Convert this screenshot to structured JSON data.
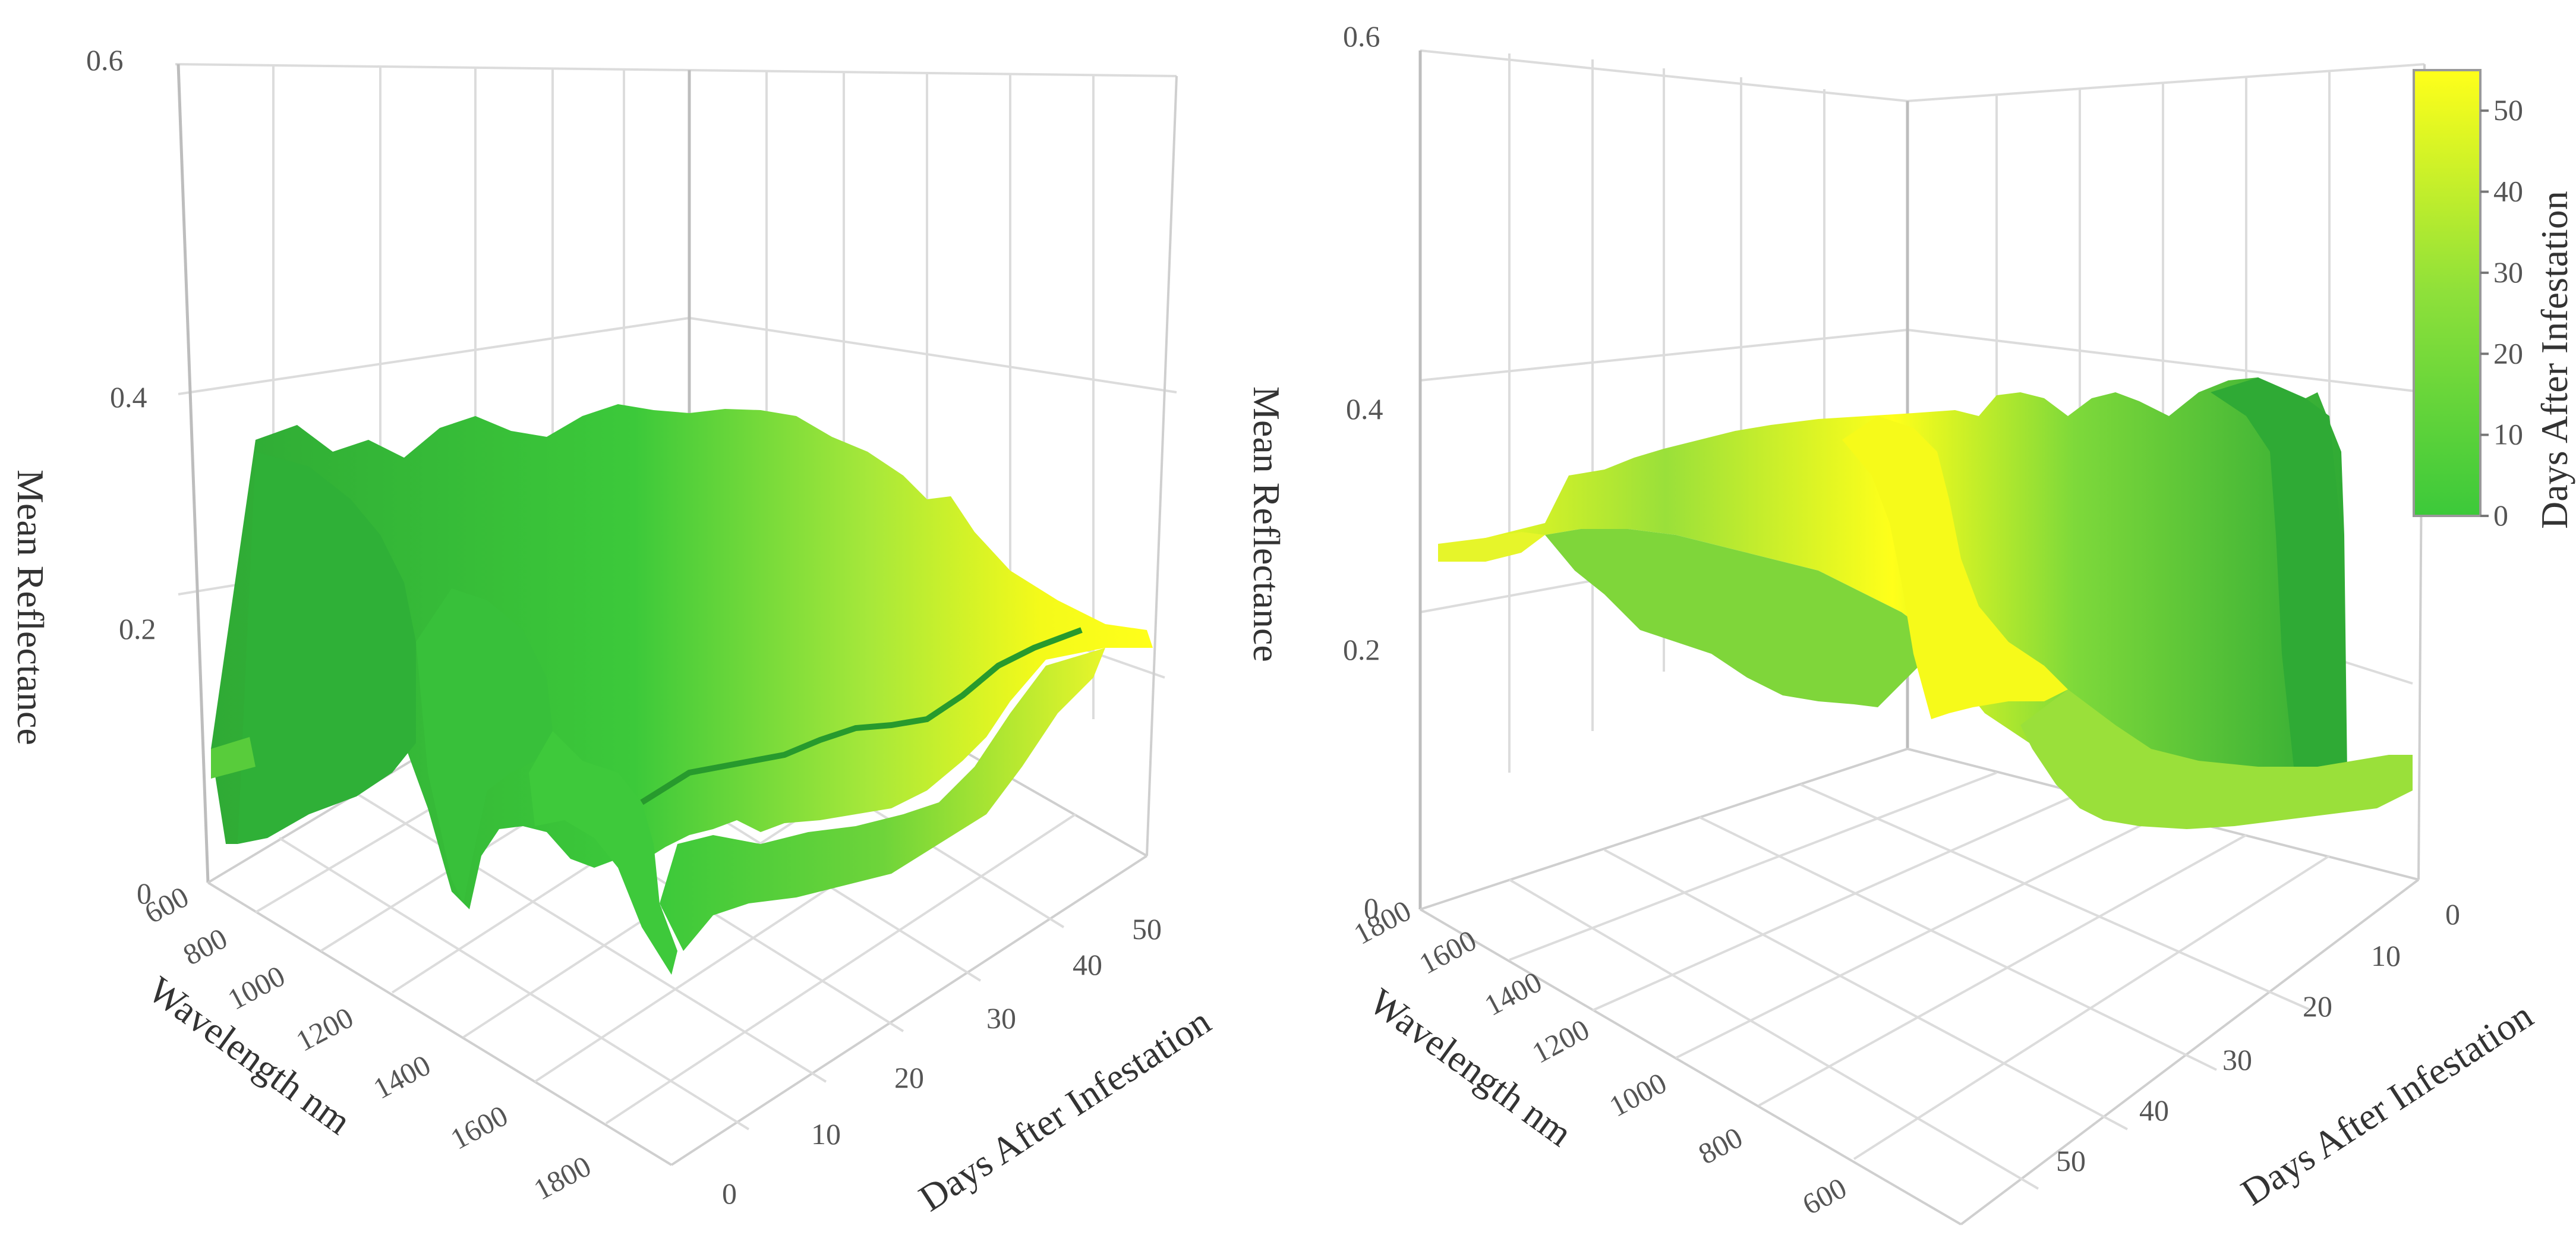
{
  "chart_data": [
    {
      "type": "surface3d",
      "view": "front",
      "zlabel": "Mean Reflectance",
      "xlabel": "Wavelength nm",
      "ylabel": "Days After Infestation",
      "z_ticks": [
        "0",
        "0.2",
        "0.4",
        "0.6"
      ],
      "zlim": [
        0,
        0.6
      ],
      "x_ticks": [
        "600",
        "800",
        "1000",
        "1200",
        "1400",
        "1600",
        "1800"
      ],
      "xlim": [
        600,
        1800
      ],
      "y_ticks": [
        "0",
        "10",
        "20",
        "30",
        "40",
        "50"
      ],
      "ylim": [
        0,
        55
      ],
      "wavelength_nm": [
        600,
        750,
        900,
        1100,
        1300,
        1400,
        1450,
        1500,
        1700,
        1800,
        1900,
        1950
      ],
      "series": [
        {
          "name": "0 days",
          "values": [
            0.11,
            0.36,
            0.34,
            0.32,
            0.32,
            0.11,
            0.05,
            0.26,
            0.25,
            0.25,
            0.06,
            0.05
          ]
        },
        {
          "name": "10 days",
          "values": [
            0.1,
            0.35,
            0.33,
            0.33,
            0.31,
            0.11,
            0.05,
            0.24,
            0.24,
            0.23,
            0.06,
            0.06
          ]
        },
        {
          "name": "20 days",
          "values": [
            0.1,
            0.34,
            0.33,
            0.32,
            0.3,
            0.1,
            0.05,
            0.23,
            0.22,
            0.21,
            0.06,
            0.06
          ]
        },
        {
          "name": "30 days",
          "values": [
            0.1,
            0.34,
            0.34,
            0.32,
            0.3,
            0.1,
            0.05,
            0.22,
            0.21,
            0.2,
            0.06,
            0.06
          ]
        },
        {
          "name": "40 days",
          "values": [
            0.1,
            0.35,
            0.35,
            0.33,
            0.31,
            0.11,
            0.06,
            0.23,
            0.22,
            0.21,
            0.07,
            0.07
          ]
        },
        {
          "name": "50 days",
          "values": [
            0.12,
            0.32,
            0.32,
            0.3,
            0.28,
            0.12,
            0.07,
            0.21,
            0.21,
            0.2,
            0.09,
            0.09
          ]
        }
      ]
    },
    {
      "type": "surface3d",
      "view": "rear",
      "zlabel": "Mean Reflectance",
      "xlabel": "Wavelength nm",
      "ylabel": "Days After Infestation",
      "z_ticks": [
        "0",
        "0.2",
        "0.4",
        "0.6"
      ],
      "zlim": [
        0,
        0.6
      ],
      "x_ticks": [
        "1800",
        "1600",
        "1400",
        "1200",
        "1000",
        "800",
        "600"
      ],
      "xlim": [
        600,
        1800
      ],
      "y_ticks": [
        "0",
        "10",
        "20",
        "30",
        "40",
        "50"
      ],
      "ylim": [
        0,
        55
      ]
    }
  ],
  "colorbar": {
    "title": "Days After Infestation",
    "ticks": [
      "0",
      "10",
      "20",
      "30",
      "40",
      "50"
    ],
    "range": [
      0,
      55
    ],
    "colors": {
      "low": "#3cc93a",
      "mid": "#8ee03a",
      "high": "#ffff1a"
    }
  }
}
